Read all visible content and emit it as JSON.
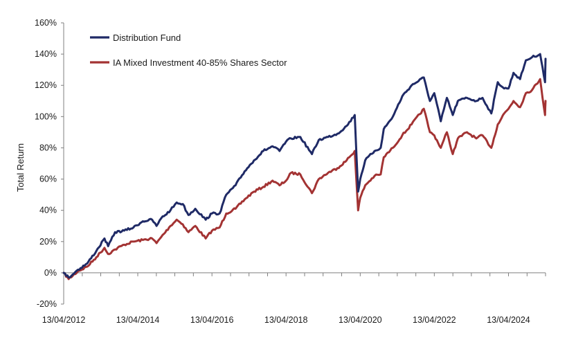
{
  "chart_data": {
    "type": "line",
    "title": "",
    "xlabel": "",
    "ylabel": "Total Return",
    "ylim": [
      -20,
      160
    ],
    "y_unit": "%",
    "x_range": [
      "2012-04-13",
      "2025-04-13"
    ],
    "yticks": [
      -20,
      0,
      20,
      40,
      60,
      80,
      100,
      120,
      140,
      160
    ],
    "ytick_labels": [
      "-20%",
      "0%",
      "20%",
      "40%",
      "60%",
      "80%",
      "100%",
      "120%",
      "140%",
      "160%"
    ],
    "xtick_labels": [
      "13/04/2012",
      "13/04/2014",
      "13/04/2016",
      "13/04/2018",
      "13/04/2020",
      "13/04/2022",
      "13/04/2024"
    ],
    "xticks": [
      "2012-04-13",
      "2014-04-13",
      "2016-04-13",
      "2018-04-13",
      "2020-04-13",
      "2022-04-13",
      "2024-04-13"
    ],
    "grid": false,
    "legend_position": "top-left",
    "series": [
      {
        "name": "Distribution Fund",
        "color": "#1f2a66",
        "points": [
          [
            "2012-04-13",
            0
          ],
          [
            "2012-06-01",
            -3
          ],
          [
            "2012-09-01",
            2
          ],
          [
            "2012-12-01",
            6
          ],
          [
            "2013-03-01",
            14
          ],
          [
            "2013-05-20",
            22
          ],
          [
            "2013-06-25",
            17
          ],
          [
            "2013-09-01",
            26
          ],
          [
            "2013-12-01",
            27
          ],
          [
            "2014-03-01",
            29
          ],
          [
            "2014-06-01",
            33
          ],
          [
            "2014-09-01",
            34
          ],
          [
            "2014-10-15",
            30
          ],
          [
            "2014-12-01",
            35
          ],
          [
            "2015-03-01",
            40
          ],
          [
            "2015-05-01",
            45
          ],
          [
            "2015-07-01",
            44
          ],
          [
            "2015-08-25",
            37
          ],
          [
            "2015-11-01",
            41
          ],
          [
            "2016-02-11",
            34
          ],
          [
            "2016-04-13",
            38
          ],
          [
            "2016-06-27",
            38
          ],
          [
            "2016-09-01",
            50
          ],
          [
            "2016-12-01",
            56
          ],
          [
            "2017-03-01",
            65
          ],
          [
            "2017-06-01",
            72
          ],
          [
            "2017-09-01",
            78
          ],
          [
            "2017-12-01",
            81
          ],
          [
            "2018-02-08",
            78
          ],
          [
            "2018-04-13",
            84
          ],
          [
            "2018-06-01",
            86
          ],
          [
            "2018-09-01",
            87
          ],
          [
            "2018-12-24",
            76
          ],
          [
            "2019-03-01",
            85
          ],
          [
            "2019-06-01",
            87
          ],
          [
            "2019-09-01",
            89
          ],
          [
            "2019-12-01",
            94
          ],
          [
            "2020-02-19",
            101
          ],
          [
            "2020-03-23",
            52
          ],
          [
            "2020-04-13",
            60
          ],
          [
            "2020-06-01",
            72
          ],
          [
            "2020-09-01",
            78
          ],
          [
            "2020-11-01",
            80
          ],
          [
            "2020-12-01",
            92
          ],
          [
            "2021-03-01",
            100
          ],
          [
            "2021-06-01",
            113
          ],
          [
            "2021-09-01",
            120
          ],
          [
            "2021-12-31",
            125
          ],
          [
            "2022-03-01",
            110
          ],
          [
            "2022-04-13",
            115
          ],
          [
            "2022-06-16",
            97
          ],
          [
            "2022-08-15",
            112
          ],
          [
            "2022-10-12",
            101
          ],
          [
            "2022-12-01",
            110
          ],
          [
            "2023-03-01",
            112
          ],
          [
            "2023-06-01",
            110
          ],
          [
            "2023-08-01",
            112
          ],
          [
            "2023-10-27",
            102
          ],
          [
            "2023-12-29",
            122
          ],
          [
            "2024-03-01",
            118
          ],
          [
            "2024-04-13",
            118
          ],
          [
            "2024-06-01",
            128
          ],
          [
            "2024-08-05",
            124
          ],
          [
            "2024-10-01",
            136
          ],
          [
            "2024-12-01",
            138
          ],
          [
            "2025-02-19",
            140
          ],
          [
            "2025-04-08",
            122
          ],
          [
            "2025-04-13",
            137
          ]
        ]
      },
      {
        "name": "IA Mixed Investment 40-85% Shares Sector",
        "color": "#a33333",
        "points": [
          [
            "2012-04-13",
            0
          ],
          [
            "2012-06-01",
            -4
          ],
          [
            "2012-09-01",
            1
          ],
          [
            "2012-12-01",
            4
          ],
          [
            "2013-03-01",
            10
          ],
          [
            "2013-05-20",
            16
          ],
          [
            "2013-06-25",
            12
          ],
          [
            "2013-09-01",
            15
          ],
          [
            "2013-12-01",
            18
          ],
          [
            "2014-03-01",
            20
          ],
          [
            "2014-06-01",
            21
          ],
          [
            "2014-09-01",
            22
          ],
          [
            "2014-10-15",
            19
          ],
          [
            "2014-12-01",
            23
          ],
          [
            "2015-03-01",
            30
          ],
          [
            "2015-05-01",
            34
          ],
          [
            "2015-07-01",
            31
          ],
          [
            "2015-08-25",
            26
          ],
          [
            "2015-11-01",
            30
          ],
          [
            "2016-02-11",
            22
          ],
          [
            "2016-04-13",
            27
          ],
          [
            "2016-06-27",
            29
          ],
          [
            "2016-09-01",
            38
          ],
          [
            "2016-12-01",
            41
          ],
          [
            "2017-03-01",
            47
          ],
          [
            "2017-06-01",
            52
          ],
          [
            "2017-09-01",
            55
          ],
          [
            "2017-12-01",
            59
          ],
          [
            "2018-02-08",
            56
          ],
          [
            "2018-04-13",
            59
          ],
          [
            "2018-06-01",
            64
          ],
          [
            "2018-09-01",
            63
          ],
          [
            "2018-12-24",
            51
          ],
          [
            "2019-03-01",
            60
          ],
          [
            "2019-06-01",
            64
          ],
          [
            "2019-09-01",
            67
          ],
          [
            "2019-12-01",
            72
          ],
          [
            "2020-02-19",
            78
          ],
          [
            "2020-03-23",
            40
          ],
          [
            "2020-04-13",
            48
          ],
          [
            "2020-06-01",
            56
          ],
          [
            "2020-09-01",
            62
          ],
          [
            "2020-11-01",
            63
          ],
          [
            "2020-12-01",
            74
          ],
          [
            "2021-03-01",
            80
          ],
          [
            "2021-06-01",
            88
          ],
          [
            "2021-09-01",
            95
          ],
          [
            "2021-12-31",
            105
          ],
          [
            "2022-03-01",
            90
          ],
          [
            "2022-04-13",
            88
          ],
          [
            "2022-06-16",
            80
          ],
          [
            "2022-08-15",
            90
          ],
          [
            "2022-10-12",
            76
          ],
          [
            "2022-12-01",
            86
          ],
          [
            "2023-03-01",
            90
          ],
          [
            "2023-06-01",
            86
          ],
          [
            "2023-08-01",
            88
          ],
          [
            "2023-10-27",
            80
          ],
          [
            "2023-12-29",
            95
          ],
          [
            "2024-03-01",
            102
          ],
          [
            "2024-04-13",
            105
          ],
          [
            "2024-06-01",
            110
          ],
          [
            "2024-08-05",
            106
          ],
          [
            "2024-10-01",
            115
          ],
          [
            "2024-12-01",
            117
          ],
          [
            "2025-02-19",
            124
          ],
          [
            "2025-04-08",
            101
          ],
          [
            "2025-04-13",
            110
          ]
        ]
      }
    ]
  }
}
